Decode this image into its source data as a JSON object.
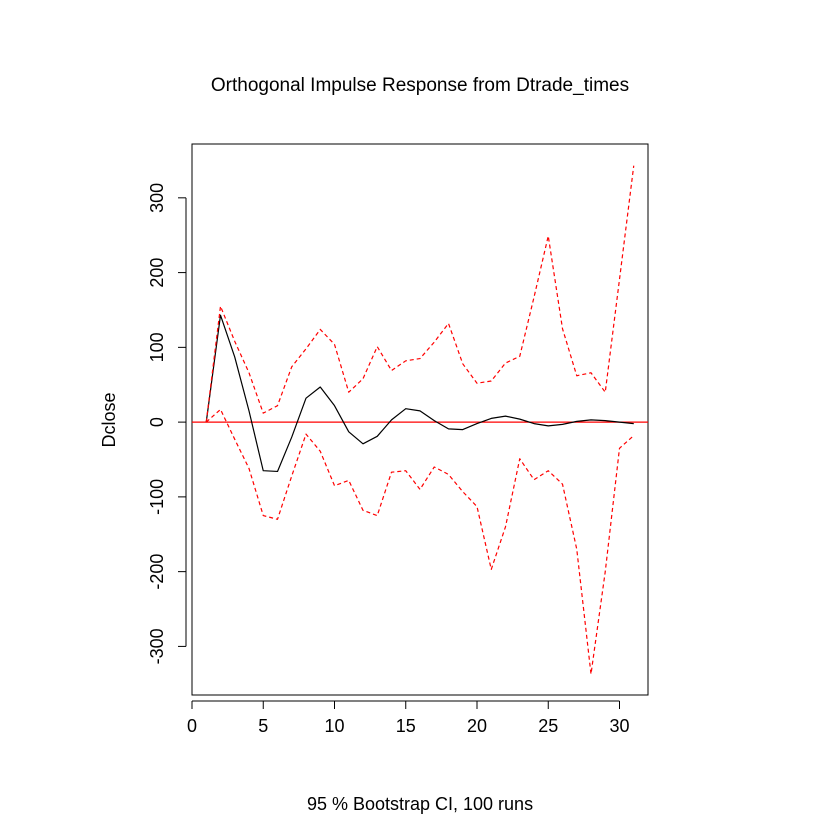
{
  "chart_data": {
    "type": "line",
    "title": "Orthogonal Impulse Response from Dtrade_times",
    "xlabel": "95 % Bootstrap CI,  100 runs",
    "ylabel": "Dclose",
    "xlim": [
      0,
      32
    ],
    "ylim": [
      -365,
      372
    ],
    "xticks": [
      0,
      5,
      10,
      15,
      20,
      25,
      30
    ],
    "yticks": [
      -300,
      -200,
      -100,
      0,
      100,
      200,
      300
    ],
    "grid": false,
    "zero_line": 0,
    "colors": {
      "response": "#000000",
      "ci": "#ff0000",
      "zero": "#ff0000"
    },
    "x": [
      1,
      2,
      3,
      4,
      5,
      6,
      7,
      8,
      9,
      10,
      11,
      12,
      13,
      14,
      15,
      16,
      17,
      18,
      19,
      20,
      21,
      22,
      23,
      24,
      25,
      26,
      27,
      28,
      29,
      30,
      31
    ],
    "series": [
      {
        "name": "Dclose",
        "style": "solid",
        "values": [
          0,
          143,
          87,
          15,
          -65,
          -66,
          -20,
          32,
          47,
          22,
          -13,
          -29,
          -19,
          3,
          18,
          15,
          2,
          -9,
          -10,
          -2,
          5,
          8,
          4,
          -2,
          -5,
          -3,
          1,
          3,
          2,
          0,
          -2
        ]
      },
      {
        "name": "",
        "style": "dashed",
        "values": [
          0,
          155,
          108,
          66,
          12,
          22,
          74,
          98,
          124,
          104,
          40,
          58,
          101,
          69,
          82,
          85,
          107,
          132,
          78,
          52,
          55,
          79,
          88,
          167,
          249,
          125,
          62,
          66,
          40,
          191,
          343
        ]
      },
      {
        "name": "",
        "style": "dashed",
        "values": [
          0,
          17,
          -23,
          -62,
          -125,
          -130,
          -72,
          -16,
          -39,
          -85,
          -78,
          -118,
          -125,
          -67,
          -65,
          -90,
          -60,
          -70,
          -93,
          -113,
          -197,
          -140,
          -49,
          -77,
          -65,
          -83,
          -170,
          -337,
          -200,
          -35,
          -18
        ]
      }
    ]
  }
}
